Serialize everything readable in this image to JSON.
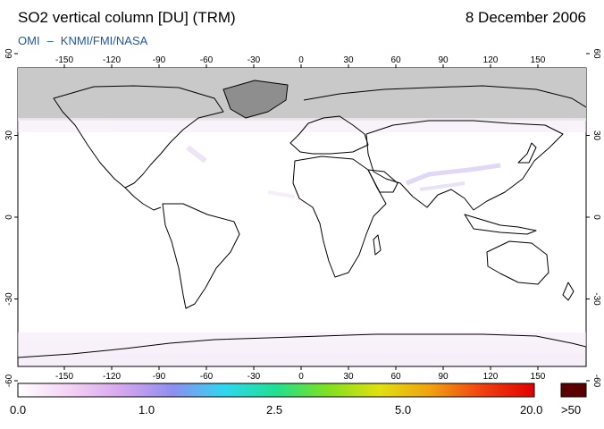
{
  "header": {
    "title": "SO2 vertical column [DU] (TRM)",
    "date": "8 December 2006",
    "credit_left": "OMI",
    "credit_dash": "–",
    "credit_right": "KNMI/FMI/NASA"
  },
  "map": {
    "lon_ticks": [
      "-150",
      "-120",
      "-90",
      "-60",
      "-30",
      "0",
      "30",
      "60",
      "90",
      "120",
      "150"
    ],
    "lat_ticks": [
      "60",
      "30",
      "0",
      "-30",
      "-60"
    ],
    "colors": {
      "no_data": "#c9c9c9",
      "no_data_dark": "#9c9c9c",
      "background": "#ffffff",
      "coast": "#000000"
    }
  },
  "colorbar": {
    "labels": [
      "0.0",
      "1.0",
      "2.5",
      "5.0",
      "20.0",
      ">50"
    ],
    "stops": [
      "#ffffff",
      "#f4d2f4",
      "#d6a6ee",
      "#8e8ef0",
      "#30d6f0",
      "#20e090",
      "#80e020",
      "#e0e010",
      "#f0a010",
      "#f04010",
      "#e00000"
    ],
    "overflow_color": "#5a0000"
  }
}
